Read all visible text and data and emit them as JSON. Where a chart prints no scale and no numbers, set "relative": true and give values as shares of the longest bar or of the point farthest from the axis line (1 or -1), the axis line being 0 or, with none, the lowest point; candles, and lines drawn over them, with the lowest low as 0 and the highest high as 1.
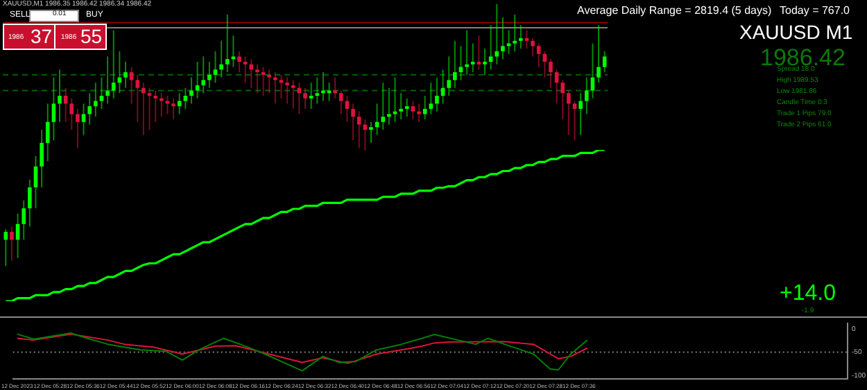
{
  "chart_data": [
    {
      "type": "candlestick",
      "relative": true,
      "grid": false,
      "legend": false,
      "categories": [
        null,
        null,
        null,
        null,
        null,
        null,
        null,
        null,
        null,
        null,
        null,
        null,
        null,
        null,
        null,
        null,
        null,
        null,
        null,
        null,
        null,
        null,
        null,
        null,
        null,
        null,
        null,
        null,
        null,
        null,
        null,
        null,
        null,
        null,
        null,
        null,
        null,
        null,
        null,
        null,
        null,
        null,
        null,
        null,
        null,
        null,
        null,
        null,
        null,
        null,
        null,
        null,
        null,
        null,
        null,
        null,
        null,
        null,
        null,
        null,
        null,
        null,
        null,
        null,
        null,
        null,
        null,
        null,
        null,
        null,
        null,
        null,
        null,
        null,
        null,
        null,
        null,
        null,
        null,
        null,
        null,
        null,
        null,
        null,
        null,
        null,
        null,
        null,
        null,
        null,
        null,
        null,
        null,
        null,
        null,
        null,
        null,
        null,
        null,
        null,
        null
      ],
      "ohlc": [
        [
          0.1,
          0.14,
          0.0,
          0.13
        ],
        [
          0.13,
          0.15,
          0.02,
          0.1
        ],
        [
          0.1,
          0.2,
          0.03,
          0.16
        ],
        [
          0.16,
          0.25,
          0.1,
          0.22
        ],
        [
          0.22,
          0.33,
          0.15,
          0.3
        ],
        [
          0.3,
          0.42,
          0.22,
          0.38
        ],
        [
          0.38,
          0.52,
          0.3,
          0.47
        ],
        [
          0.47,
          0.62,
          0.4,
          0.55
        ],
        [
          0.55,
          0.72,
          0.48,
          0.62
        ],
        [
          0.62,
          0.75,
          0.55,
          0.65
        ],
        [
          0.65,
          0.68,
          0.55,
          0.62
        ],
        [
          0.62,
          0.64,
          0.52,
          0.58
        ],
        [
          0.58,
          0.6,
          0.45,
          0.55
        ],
        [
          0.55,
          0.62,
          0.5,
          0.58
        ],
        [
          0.58,
          0.66,
          0.54,
          0.61
        ],
        [
          0.61,
          0.7,
          0.57,
          0.63
        ],
        [
          0.63,
          0.72,
          0.6,
          0.65
        ],
        [
          0.65,
          0.8,
          0.62,
          0.67
        ],
        [
          0.67,
          0.9,
          0.64,
          0.7
        ],
        [
          0.7,
          0.82,
          0.66,
          0.72
        ],
        [
          0.72,
          0.78,
          0.68,
          0.74
        ],
        [
          0.74,
          0.76,
          0.62,
          0.71
        ],
        [
          0.71,
          0.73,
          0.55,
          0.68
        ],
        [
          0.68,
          0.7,
          0.5,
          0.66
        ],
        [
          0.66,
          0.68,
          0.52,
          0.65
        ],
        [
          0.65,
          0.67,
          0.55,
          0.64
        ],
        [
          0.64,
          0.66,
          0.57,
          0.63
        ],
        [
          0.63,
          0.65,
          0.58,
          0.62
        ],
        [
          0.62,
          0.64,
          0.56,
          0.61
        ],
        [
          0.61,
          0.66,
          0.58,
          0.63
        ],
        [
          0.63,
          0.68,
          0.6,
          0.65
        ],
        [
          0.65,
          0.72,
          0.62,
          0.67
        ],
        [
          0.67,
          0.78,
          0.64,
          0.69
        ],
        [
          0.69,
          0.8,
          0.66,
          0.71
        ],
        [
          0.71,
          0.78,
          0.68,
          0.73
        ],
        [
          0.73,
          0.82,
          0.7,
          0.75
        ],
        [
          0.75,
          0.86,
          0.72,
          0.77
        ],
        [
          0.77,
          0.96,
          0.74,
          0.79
        ],
        [
          0.79,
          0.88,
          0.76,
          0.8
        ],
        [
          0.8,
          0.82,
          0.74,
          0.78
        ],
        [
          0.78,
          0.8,
          0.7,
          0.77
        ],
        [
          0.77,
          0.79,
          0.68,
          0.75
        ],
        [
          0.75,
          0.77,
          0.66,
          0.74
        ],
        [
          0.74,
          0.76,
          0.65,
          0.73
        ],
        [
          0.73,
          0.75,
          0.66,
          0.72
        ],
        [
          0.72,
          0.74,
          0.62,
          0.71
        ],
        [
          0.71,
          0.73,
          0.64,
          0.7
        ],
        [
          0.7,
          0.72,
          0.62,
          0.69
        ],
        [
          0.69,
          0.71,
          0.6,
          0.68
        ],
        [
          0.68,
          0.7,
          0.58,
          0.66
        ],
        [
          0.66,
          0.68,
          0.6,
          0.64
        ],
        [
          0.64,
          0.7,
          0.6,
          0.65
        ],
        [
          0.65,
          0.72,
          0.62,
          0.66
        ],
        [
          0.66,
          0.74,
          0.63,
          0.67
        ],
        [
          0.66,
          0.7,
          0.63,
          0.67
        ],
        [
          0.67,
          0.72,
          0.64,
          0.66
        ],
        [
          0.66,
          0.67,
          0.58,
          0.63
        ],
        [
          0.63,
          0.65,
          0.55,
          0.6
        ],
        [
          0.6,
          0.62,
          0.48,
          0.57
        ],
        [
          0.57,
          0.59,
          0.45,
          0.54
        ],
        [
          0.54,
          0.56,
          0.44,
          0.52
        ],
        [
          0.52,
          0.55,
          0.47,
          0.53
        ],
        [
          0.53,
          0.62,
          0.5,
          0.55
        ],
        [
          0.55,
          0.7,
          0.52,
          0.57
        ],
        [
          0.57,
          0.68,
          0.54,
          0.58
        ],
        [
          0.58,
          0.72,
          0.55,
          0.59
        ],
        [
          0.59,
          0.66,
          0.56,
          0.6
        ],
        [
          0.6,
          0.64,
          0.57,
          0.61
        ],
        [
          0.61,
          0.63,
          0.56,
          0.59
        ],
        [
          0.59,
          0.62,
          0.55,
          0.58
        ],
        [
          0.58,
          0.65,
          0.56,
          0.6
        ],
        [
          0.6,
          0.7,
          0.58,
          0.62
        ],
        [
          0.62,
          0.72,
          0.59,
          0.65
        ],
        [
          0.65,
          0.75,
          0.62,
          0.68
        ],
        [
          0.68,
          0.8,
          0.65,
          0.71
        ],
        [
          0.71,
          0.86,
          0.68,
          0.74
        ],
        [
          0.74,
          0.84,
          0.71,
          0.76
        ],
        [
          0.76,
          0.9,
          0.73,
          0.77
        ],
        [
          0.77,
          0.85,
          0.74,
          0.78
        ],
        [
          0.78,
          0.88,
          0.75,
          0.77
        ],
        [
          0.77,
          0.83,
          0.73,
          0.78
        ],
        [
          0.78,
          0.92,
          0.75,
          0.8
        ],
        [
          0.8,
          1.0,
          0.77,
          0.82
        ],
        [
          0.82,
          0.95,
          0.79,
          0.84
        ],
        [
          0.84,
          0.9,
          0.81,
          0.85
        ],
        [
          0.85,
          0.96,
          0.82,
          0.86
        ],
        [
          0.86,
          0.92,
          0.83,
          0.87
        ],
        [
          0.87,
          0.9,
          0.83,
          0.86
        ],
        [
          0.86,
          0.87,
          0.8,
          0.84
        ],
        [
          0.84,
          0.85,
          0.76,
          0.81
        ],
        [
          0.81,
          0.82,
          0.72,
          0.78
        ],
        [
          0.78,
          0.79,
          0.68,
          0.74
        ],
        [
          0.74,
          0.75,
          0.62,
          0.7
        ],
        [
          0.7,
          0.71,
          0.56,
          0.66
        ],
        [
          0.66,
          0.67,
          0.5,
          0.62
        ],
        [
          0.62,
          0.63,
          0.48,
          0.6
        ],
        [
          0.6,
          0.66,
          0.5,
          0.63
        ],
        [
          0.63,
          0.72,
          0.58,
          0.67
        ],
        [
          0.67,
          0.85,
          0.64,
          0.72
        ],
        [
          0.72,
          0.92,
          0.7,
          0.76
        ],
        [
          0.76,
          0.82,
          0.74,
          0.8
        ]
      ],
      "colors": [
        "#00ff00",
        "#dc143c",
        "#00ff00",
        "#00ff00",
        "#00ff00",
        "#00ff00",
        "#00ff00",
        "#00ff00",
        "#00ff00",
        "#00ff00",
        "#dc143c",
        "#dc143c",
        "#dc143c",
        "#00ff00",
        "#00ff00",
        "#00ff00",
        "#00ff00",
        "#00ff00",
        "#00ff00",
        "#00ff00",
        "#00ff00",
        "#dc143c",
        "#dc143c",
        "#dc143c",
        "#dc143c",
        "#dc143c",
        "#dc143c",
        "#dc143c",
        "#dc143c",
        "#00ff00",
        "#00ff00",
        "#00ff00",
        "#00ff00",
        "#00ff00",
        "#00ff00",
        "#00ff00",
        "#00ff00",
        "#00ff00",
        "#00ff00",
        "#dc143c",
        "#dc143c",
        "#dc143c",
        "#dc143c",
        "#dc143c",
        "#dc143c",
        "#dc143c",
        "#dc143c",
        "#dc143c",
        "#dc143c",
        "#dc143c",
        "#dc143c",
        "#00ff00",
        "#00ff00",
        "#00ff00",
        "#00ff00",
        "#dc143c",
        "#dc143c",
        "#dc143c",
        "#dc143c",
        "#dc143c",
        "#dc143c",
        "#00ff00",
        "#00ff00",
        "#00ff00",
        "#00ff00",
        "#00ff00",
        "#00ff00",
        "#00ff00",
        "#dc143c",
        "#dc143c",
        "#00ff00",
        "#00ff00",
        "#00ff00",
        "#00ff00",
        "#00ff00",
        "#00ff00",
        "#00ff00",
        "#00ff00",
        "#00ff00",
        "#dc143c",
        "#00ff00",
        "#00ff00",
        "#00ff00",
        "#00ff00",
        "#00ff00",
        "#00ff00",
        "#00ff00",
        "#dc143c",
        "#dc143c",
        "#dc143c",
        "#dc143c",
        "#dc143c",
        "#dc143c",
        "#dc143c",
        "#dc143c",
        "#dc143c",
        "#00ff00",
        "#00ff00",
        "#00ff00",
        "#00ff00",
        "#00ff00"
      ],
      "ref_lines": [
        {
          "axis": "y",
          "value": 0.93,
          "color": "#8b0000",
          "line_style": "solid"
        },
        {
          "axis": "y",
          "value": 0.91,
          "color": "#808080",
          "line_style": "solid"
        },
        {
          "axis": "y",
          "value": 0.73,
          "color": "#006400",
          "line_style": "dashed"
        },
        {
          "axis": "y",
          "value": 0.67,
          "color": "#006400",
          "line_style": "dashed"
        }
      ],
      "annotations": [
        "XAUUSD,M1  1986.35 1986.42 1986.34 1986.42",
        "SELL",
        "0.01",
        "BUY",
        "1986",
        "37",
        "1986",
        "55",
        "Average Daily Range = 2819.4 (5 days)",
        "Today = 767.0",
        "XAUUSD M1",
        "1986.42",
        "Spread 18.0",
        "High 1989.53",
        "Low 1981.86",
        "Candle Time 0:3",
        "Trade 1 Pips 79.0",
        "Trade 2 Pips 61.0",
        "+14.0",
        "-1.9"
      ]
    },
    {
      "type": "line",
      "relative": true,
      "grid": false,
      "legend": false,
      "categories": [
        null,
        null,
        null,
        null,
        null,
        null,
        null,
        null,
        null,
        null,
        null,
        null,
        null,
        null,
        null,
        null,
        null,
        null,
        null,
        null,
        null,
        null,
        null,
        null,
        null,
        null,
        null,
        null,
        null,
        null,
        null,
        null,
        null,
        null,
        null,
        null,
        null,
        null,
        null,
        null,
        null,
        null,
        null,
        null,
        null,
        null,
        null,
        null,
        null,
        null,
        null,
        null,
        null,
        null,
        null,
        null,
        null,
        null,
        null,
        null,
        null,
        null,
        null,
        null,
        null,
        null,
        null,
        null,
        null,
        null,
        null,
        null,
        null,
        null,
        null,
        null,
        null,
        null,
        null,
        null,
        null,
        null,
        null,
        null,
        null,
        null,
        null,
        null,
        null,
        null,
        null,
        null,
        null,
        null,
        null,
        null,
        null,
        null,
        null,
        null,
        null
      ],
      "series": [
        {
          "color": "#00ff00",
          "values": [
            0,
            0,
            0.02,
            0.02,
            0.02,
            0.04,
            0.04,
            0.04,
            0.06,
            0.06,
            0.08,
            0.08,
            0.1,
            0.1,
            0.12,
            0.12,
            0.14,
            0.16,
            0.16,
            0.18,
            0.2,
            0.2,
            0.22,
            0.24,
            0.25,
            0.25,
            0.27,
            0.29,
            0.31,
            0.31,
            0.33,
            0.35,
            0.37,
            0.39,
            0.39,
            0.41,
            0.43,
            0.45,
            0.47,
            0.49,
            0.51,
            0.51,
            0.53,
            0.55,
            0.55,
            0.57,
            0.59,
            0.59,
            0.61,
            0.61,
            0.63,
            0.63,
            0.63,
            0.65,
            0.65,
            0.65,
            0.65,
            0.67,
            0.67,
            0.67,
            0.67,
            0.67,
            0.67,
            0.69,
            0.69,
            0.69,
            0.71,
            0.71,
            0.71,
            0.73,
            0.73,
            0.73,
            0.75,
            0.75,
            0.76,
            0.76,
            0.78,
            0.8,
            0.8,
            0.82,
            0.82,
            0.84,
            0.84,
            0.86,
            0.86,
            0.88,
            0.88,
            0.9,
            0.9,
            0.92,
            0.92,
            0.94,
            0.94,
            0.96,
            0.96,
            0.96,
            0.98,
            0.98,
            0.98,
            1.0,
            1.0
          ]
        }
      ]
    },
    {
      "type": "line",
      "grid": false,
      "legend": false,
      "xlim": [
        "2023-12-12T05:19",
        "2023-12-12T08:41"
      ],
      "ylim": [
        -108,
        12
      ],
      "xticks": [
        {
          "value": "2023-12-12T05:20",
          "label": "12 Dec 2023"
        },
        {
          "value": "2023-12-12T05:28",
          "label": "12 Dec 05:28"
        },
        {
          "value": "2023-12-12T05:36",
          "label": "12 Dec 05:36"
        },
        {
          "value": "2023-12-12T05:44",
          "label": "12 Dec 05:44"
        },
        {
          "value": "2023-12-12T05:52",
          "label": "12 Dec 05:52"
        },
        {
          "value": "2023-12-12T06:00",
          "label": "12 Dec 06:00"
        },
        {
          "value": "2023-12-12T06:08",
          "label": "12 Dec 06:08"
        },
        {
          "value": "2023-12-12T06:16",
          "label": "12 Dec 06:16"
        },
        {
          "value": "2023-12-12T06:24",
          "label": "12 Dec 06:24"
        },
        {
          "value": "2023-12-12T06:32",
          "label": "12 Dec 06:32"
        },
        {
          "value": "2023-12-12T06:40",
          "label": "12 Dec 06:40"
        },
        {
          "value": "2023-12-12T06:48",
          "label": "12 Dec 06:48"
        },
        {
          "value": "2023-12-12T06:56",
          "label": "12 Dec 06:56"
        },
        {
          "value": "2023-12-12T07:04",
          "label": "12 Dec 07:04"
        },
        {
          "value": "2023-12-12T07:12",
          "label": "12 Dec 07:12"
        },
        {
          "value": "2023-12-12T07:20",
          "label": "12 Dec 07:20"
        },
        {
          "value": "2023-12-12T07:28",
          "label": "12 Dec 07:28"
        },
        {
          "value": "2023-12-12T07:36",
          "label": "12 Dec 07:36"
        }
      ],
      "yticks": [
        -100,
        -50,
        0
      ],
      "ref_lines": [
        {
          "axis": "y",
          "value": -50,
          "color": "#808080",
          "line_style": "dotted"
        }
      ],
      "series": [
        {
          "color": "#008000",
          "x": [
            "2023-12-12T05:20",
            "2023-12-12T05:24",
            "2023-12-12T05:33",
            "2023-12-12T05:37",
            "2023-12-12T05:42",
            "2023-12-12T05:50",
            "2023-12-12T05:56",
            "2023-12-12T06:00",
            "2023-12-12T06:04",
            "2023-12-12T06:10",
            "2023-12-12T06:14",
            "2023-12-12T06:20",
            "2023-12-12T06:29",
            "2023-12-12T06:34",
            "2023-12-12T06:38",
            "2023-12-12T06:42",
            "2023-12-12T06:47",
            "2023-12-12T06:53",
            "2023-12-12T06:58",
            "2023-12-12T07:01",
            "2023-12-12T07:11",
            "2023-12-12T07:14",
            "2023-12-12T07:18",
            "2023-12-12T07:25",
            "2023-12-12T07:29",
            "2023-12-12T07:31",
            "2023-12-12T07:34",
            "2023-12-12T07:38"
          ],
          "values": [
            -11,
            -22,
            -9,
            -20,
            -33,
            -45,
            -48,
            -67,
            -45,
            -20,
            -33,
            -54,
            -90,
            -59,
            -72,
            -70,
            -45,
            -33,
            -20,
            -12,
            -33,
            -20,
            -33,
            -54,
            -86,
            -88,
            -54,
            -24
          ]
        },
        {
          "color": "#dc143c",
          "x": [
            "2023-12-12T05:20",
            "2023-12-12T05:24",
            "2023-12-12T05:33",
            "2023-12-12T05:42",
            "2023-12-12T05:46",
            "2023-12-12T05:53",
            "2023-12-12T06:00",
            "2023-12-12T06:08",
            "2023-12-12T06:13",
            "2023-12-12T06:21",
            "2023-12-12T06:29",
            "2023-12-12T06:34",
            "2023-12-12T06:40",
            "2023-12-12T06:47",
            "2023-12-12T06:55",
            "2023-12-12T06:58",
            "2023-12-12T07:01",
            "2023-12-12T07:05",
            "2023-12-12T07:18",
            "2023-12-12T07:25",
            "2023-12-12T07:31",
            "2023-12-12T07:34",
            "2023-12-12T07:38"
          ],
          "values": [
            -20,
            -24,
            -11,
            -24,
            -33,
            -39,
            -54,
            -37,
            -36,
            -54,
            -72,
            -62,
            -74,
            -54,
            -42,
            -37,
            -30,
            -28,
            -27,
            -33,
            -64,
            -59,
            -41
          ]
        }
      ]
    }
  ]
}
